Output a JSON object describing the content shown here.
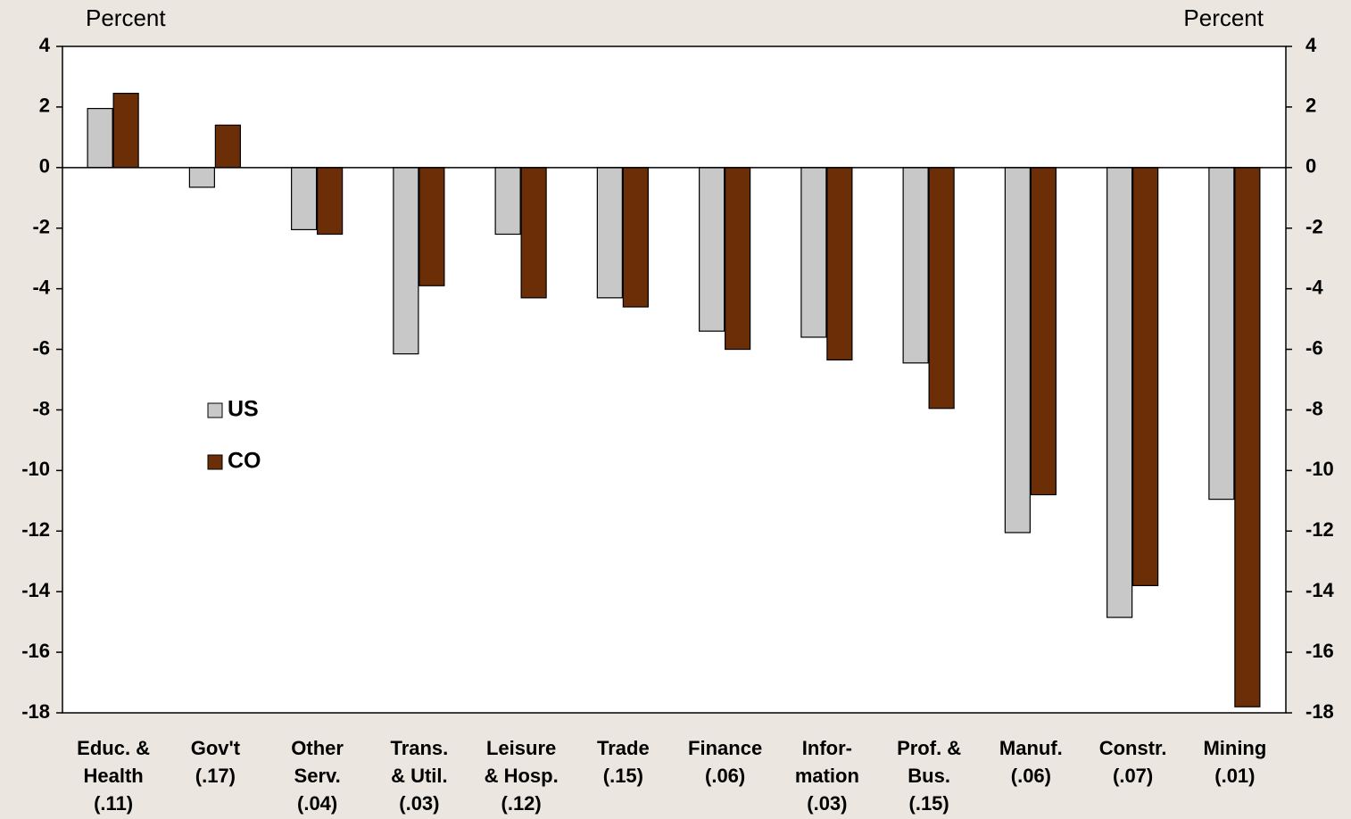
{
  "chart_data": {
    "type": "bar",
    "y_label": "Percent",
    "y2_label": "Percent",
    "categories": [
      "Educ. &\nHealth\n(.11)",
      "Gov't\n(.17)",
      "Other\nServ.\n(.04)",
      "Trans.\n& Util.\n(.03)",
      "Leisure\n& Hosp.\n(.12)",
      "Trade\n(.15)",
      "Finance\n(.06)",
      "Infor-\nmation\n(.03)",
      "Prof. &\nBus.\n(.15)",
      "Manuf.\n(.06)",
      "Constr.\n(.07)",
      "Mining\n(.01)"
    ],
    "series": [
      {
        "name": "US",
        "color": "#c8c8c8",
        "values": [
          1.95,
          -0.65,
          -2.05,
          -6.15,
          -2.2,
          -4.3,
          -5.4,
          -5.6,
          -6.45,
          -12.05,
          -14.85,
          -10.95
        ]
      },
      {
        "name": "CO",
        "color": "#6b2e06",
        "values": [
          2.45,
          1.4,
          -2.2,
          -3.9,
          -4.3,
          -4.6,
          -6.0,
          -6.35,
          -7.95,
          -10.8,
          -13.8,
          -17.8
        ]
      }
    ],
    "ylim": [
      -18,
      4
    ],
    "yticks": [
      4,
      2,
      0,
      -2,
      -4,
      -6,
      -8,
      -10,
      -12,
      -14,
      -16,
      -18
    ],
    "y2lim": [
      -18,
      4
    ],
    "y2ticks": [
      4,
      2,
      0,
      -2,
      -4,
      -6,
      -8,
      -10,
      -12,
      -14,
      -16,
      -18
    ],
    "legend": "left"
  }
}
